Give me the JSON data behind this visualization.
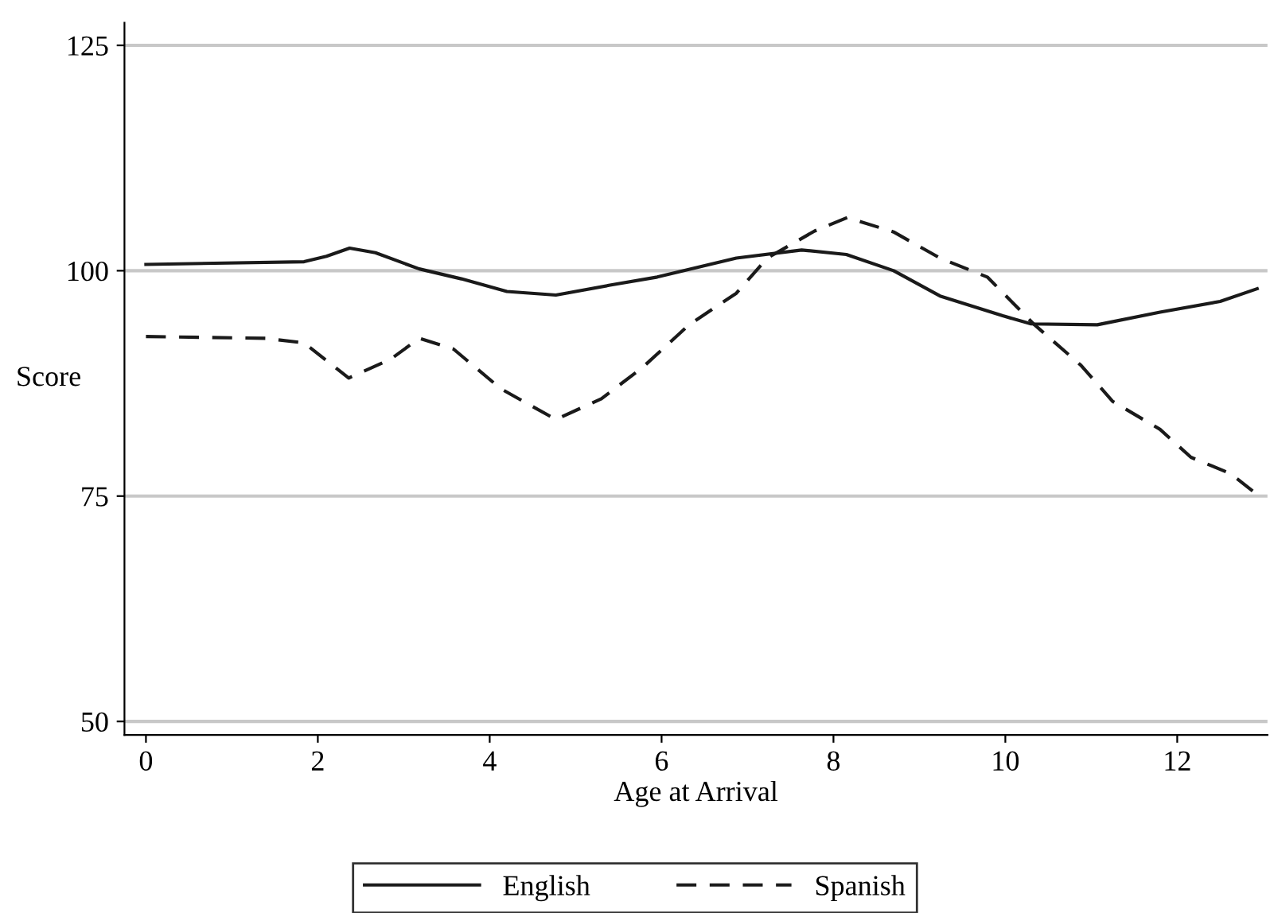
{
  "chart_data": {
    "type": "line",
    "xlabel": "Age at Arrival",
    "ylabel": "Score",
    "xlim": [
      -0.25,
      13.05
    ],
    "ylim": [
      48.5,
      127.5
    ],
    "xticks": [
      0,
      2,
      4,
      6,
      8,
      10,
      12
    ],
    "yticks": [
      50,
      75,
      100,
      125
    ],
    "grid": "y",
    "legend": "bottom",
    "series": [
      {
        "name": "English",
        "color": "#1a1a1a",
        "line_style": "solid",
        "x": [
          0,
          1.84,
          2.1,
          2.37,
          2.67,
          3.18,
          3.67,
          4.2,
          4.77,
          5.4,
          5.95,
          6.87,
          7.63,
          8.15,
          8.7,
          9.24,
          9.97,
          10.3,
          11.07,
          11.8,
          12.5,
          12.93
        ],
        "values": [
          100.7,
          101.0,
          101.6,
          102.5,
          102.0,
          100.2,
          99.1,
          97.7,
          97.3,
          98.4,
          99.3,
          101.4,
          102.3,
          101.8,
          100.0,
          97.2,
          95.0,
          94.1,
          94.0,
          95.4,
          96.6,
          98.0
        ]
      },
      {
        "name": "Spanish",
        "color": "#1a1a1a",
        "line_style": "dashed",
        "x": [
          0,
          1.39,
          1.84,
          2.36,
          2.85,
          3.18,
          3.58,
          4.13,
          4.77,
          5.3,
          5.77,
          6.32,
          6.87,
          7.23,
          7.78,
          8.16,
          8.7,
          9.24,
          9.79,
          10.34,
          10.88,
          11.25,
          11.8,
          12.16,
          12.62,
          12.9
        ],
        "values": [
          92.7,
          92.5,
          92.0,
          88.1,
          90.2,
          92.5,
          91.3,
          86.9,
          83.5,
          85.8,
          89.2,
          94.0,
          97.5,
          101.4,
          104.4,
          105.9,
          104.3,
          101.4,
          99.3,
          94.0,
          89.5,
          85.5,
          82.4,
          79.3,
          77.5,
          75.4
        ]
      }
    ]
  }
}
